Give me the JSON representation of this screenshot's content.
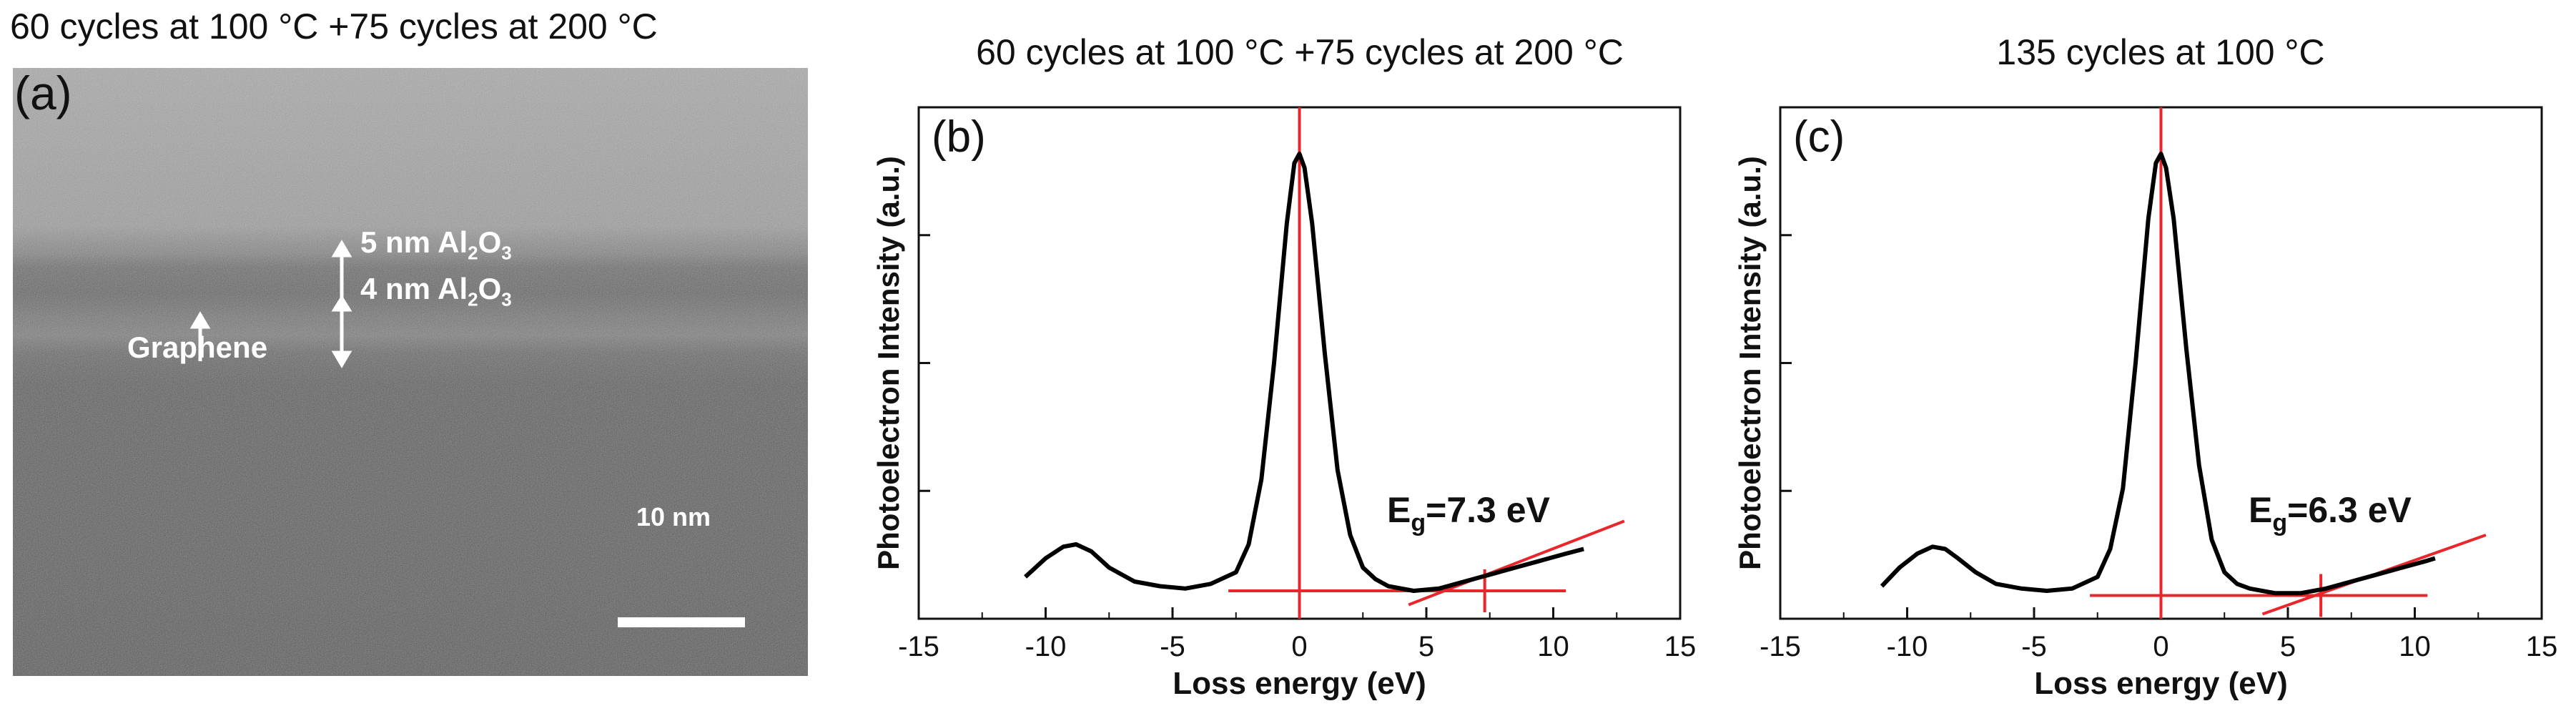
{
  "panel_a": {
    "title": "60 cycles at 100 °C +75 cycles at 200 °C",
    "letter": "(a)",
    "layer_top_num": "5 nm Al",
    "layer_bottom_num": "4 nm Al",
    "subscript_2": "2",
    "subscript_3": "3",
    "element_o": "O",
    "graphene_label": "Graphene",
    "scale_bar_label": "10 nm"
  },
  "chart_data": [
    {
      "type": "line",
      "panel": "(b)",
      "title": "60 cycles at 100 °C +75 cycles at 200 °C",
      "xlabel": "Loss energy (eV)",
      "ylabel": "Photoelectron Intensity (a.u.)",
      "xlim": [
        -15,
        15
      ],
      "ylim": [
        0,
        1.1
      ],
      "xticks": [
        -15,
        -10,
        -5,
        0,
        5,
        10,
        15
      ],
      "xtick_labels": [
        "-15",
        "-10",
        "-5",
        "0",
        "5",
        "10",
        "15"
      ],
      "annotation": {
        "prefix": "E",
        "sub": "g",
        "suffix": "=7.3 eV"
      },
      "bandgap": 7.3,
      "baseline": 0.06,
      "fit_line": {
        "x": [
          4.3,
          12.8
        ],
        "y": [
          0.03,
          0.21
        ]
      },
      "x": [
        -10.8,
        -10.0,
        -9.3,
        -8.8,
        -8.2,
        -7.5,
        -6.5,
        -5.5,
        -4.5,
        -3.5,
        -2.5,
        -2.0,
        -1.5,
        -1.0,
        -0.5,
        -0.2,
        0.0,
        0.2,
        0.5,
        1.0,
        1.5,
        2.0,
        2.5,
        3.0,
        3.5,
        4.5,
        5.5,
        6.5,
        7.5,
        8.5,
        9.5,
        10.5,
        11.2
      ],
      "y": [
        0.09,
        0.13,
        0.155,
        0.16,
        0.145,
        0.11,
        0.08,
        0.07,
        0.065,
        0.075,
        0.1,
        0.16,
        0.3,
        0.55,
        0.85,
        0.98,
        1.0,
        0.97,
        0.85,
        0.57,
        0.32,
        0.18,
        0.11,
        0.085,
        0.07,
        0.06,
        0.065,
        0.08,
        0.095,
        0.11,
        0.125,
        0.14,
        0.15
      ]
    },
    {
      "type": "line",
      "panel": "(c)",
      "title": "135 cycles at 100 °C",
      "xlabel": "Loss energy (eV)",
      "ylabel": "Photoelectron Intensity (a.u.)",
      "xlim": [
        -15,
        15
      ],
      "ylim": [
        0,
        1.1
      ],
      "xticks": [
        -15,
        -10,
        -5,
        0,
        5,
        10,
        15
      ],
      "xtick_labels": [
        "-15",
        "-10",
        "-5",
        "0",
        "5",
        "10",
        "15"
      ],
      "annotation": {
        "prefix": "E",
        "sub": "g",
        "suffix": "=6.3 eV"
      },
      "bandgap": 6.3,
      "baseline": 0.05,
      "fit_line": {
        "x": [
          4.0,
          12.8
        ],
        "y": [
          0.01,
          0.18
        ]
      },
      "x": [
        -11.0,
        -10.3,
        -9.6,
        -9.0,
        -8.5,
        -8.0,
        -7.3,
        -6.5,
        -5.5,
        -4.5,
        -3.5,
        -2.5,
        -2.0,
        -1.5,
        -1.0,
        -0.5,
        -0.2,
        0.0,
        0.2,
        0.5,
        1.0,
        1.5,
        2.0,
        2.5,
        3.0,
        3.5,
        4.5,
        5.5,
        6.5,
        7.5,
        8.5,
        9.5,
        10.5,
        10.8
      ],
      "y": [
        0.07,
        0.11,
        0.14,
        0.155,
        0.15,
        0.13,
        0.1,
        0.075,
        0.065,
        0.06,
        0.065,
        0.09,
        0.15,
        0.28,
        0.55,
        0.86,
        0.98,
        1.0,
        0.97,
        0.86,
        0.58,
        0.33,
        0.17,
        0.1,
        0.075,
        0.065,
        0.055,
        0.055,
        0.065,
        0.08,
        0.095,
        0.11,
        0.125,
        0.13
      ]
    }
  ]
}
